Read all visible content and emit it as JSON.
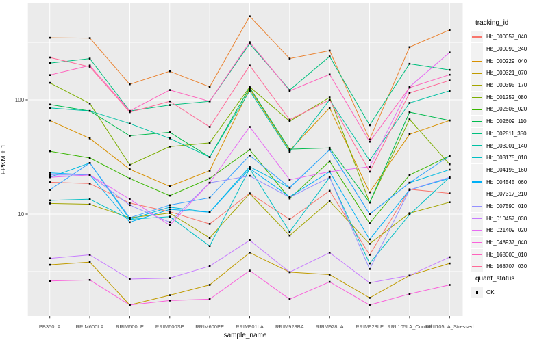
{
  "chart_data": {
    "type": "line",
    "title": "",
    "xlabel": "sample_name",
    "ylabel": "FPKM + 1",
    "y_scale": "log10",
    "y_tick_labels": [
      "100",
      "10"
    ],
    "y_ticks": [
      100,
      10
    ],
    "y_minor_ticks": [
      316.2,
      31.62,
      3.162
    ],
    "ylim": [
      1.28,
      700
    ],
    "grid": "on",
    "legend_position": "right",
    "point_marker": "small-black-square",
    "categories": [
      "PB350LA",
      "RRIM600LA",
      "RRIM600LE",
      "RRIM600SE",
      "RRIM600PE",
      "RRIM901LA",
      "RRIM928BA",
      "RRIM928LA",
      "RRIM928LE",
      "RRII105LA_Control",
      "RRII105LA_Stressed"
    ],
    "series": [
      {
        "name": "Hb_000057_040",
        "color": "#F8766D",
        "values": [
          19,
          18.5,
          12.5,
          10.5,
          8.2,
          15.2,
          9.0,
          16.0,
          4.4,
          16.5,
          15.2
        ]
      },
      {
        "name": "Hb_000099_240",
        "color": "#EA8331",
        "values": [
          350,
          348,
          137,
          178,
          130,
          540,
          230,
          270,
          45,
          290,
          410
        ]
      },
      {
        "name": "Hb_000229_040",
        "color": "#D89000",
        "values": [
          66,
          46,
          24.7,
          17.5,
          24,
          125,
          36,
          85,
          15.5,
          50,
          66
        ]
      },
      {
        "name": "Hb_000321_070",
        "color": "#C09B00",
        "values": [
          3.6,
          3.8,
          1.6,
          1.95,
          2.4,
          4.6,
          3.1,
          2.95,
          1.85,
          2.9,
          3.7
        ]
      },
      {
        "name": "Hb_000395_170",
        "color": "#A3A500",
        "values": [
          12.4,
          12.2,
          9.3,
          10.2,
          6.2,
          15.1,
          6.5,
          13.0,
          5.5,
          10.2,
          12.7
        ]
      },
      {
        "name": "Hb_001252_080",
        "color": "#7CAE00",
        "values": [
          141,
          93,
          27,
          39,
          42,
          130,
          65,
          105,
          12.6,
          67.5,
          27.3
        ]
      },
      {
        "name": "Hb_002506_020",
        "color": "#39B600",
        "values": [
          35.5,
          31,
          20.5,
          14.5,
          20.5,
          36.6,
          13.7,
          29,
          8.3,
          22,
          32.3
        ]
      },
      {
        "name": "Hb_002609_110",
        "color": "#00BB4E",
        "values": [
          91,
          80,
          48.5,
          52,
          31.6,
          128,
          37,
          38,
          12.6,
          78,
          66
        ]
      },
      {
        "name": "Hb_002811_350",
        "color": "#00BF7D",
        "values": [
          210,
          230,
          80,
          90,
          97,
          310,
          122,
          240,
          60,
          207,
          183
        ]
      },
      {
        "name": "Hb_003001_140",
        "color": "#00C1A3",
        "values": [
          85,
          80,
          62,
          46,
          31.6,
          120,
          35,
          100,
          29.5,
          94,
          120
        ]
      },
      {
        "name": "Hb_003175_010",
        "color": "#00BFC4",
        "values": [
          13.2,
          13.5,
          9.0,
          9.5,
          5.25,
          25,
          7.0,
          21,
          3.7,
          9.9,
          21
        ]
      },
      {
        "name": "Hb_004195_160",
        "color": "#00BAE0",
        "values": [
          21,
          28,
          9.0,
          11.5,
          10.4,
          26,
          17,
          36.6,
          10,
          18.8,
          24.5
        ]
      },
      {
        "name": "Hb_004545_060",
        "color": "#00B0F6",
        "values": [
          23,
          22,
          8.5,
          11,
          10.4,
          25,
          14.2,
          23.5,
          6.0,
          16.3,
          20.6
        ]
      },
      {
        "name": "Hb_007317_210",
        "color": "#35A2FF",
        "values": [
          16.3,
          28,
          9.3,
          12,
          13.9,
          32.6,
          17.1,
          36.6,
          10,
          18.8,
          32.3
        ]
      },
      {
        "name": "Hb_007590_010",
        "color": "#9590FF",
        "values": [
          22,
          22,
          12,
          8.5,
          18.8,
          21.6,
          14,
          21,
          3.3,
          16.3,
          21
        ]
      },
      {
        "name": "Hb_010457_030",
        "color": "#C77CFF",
        "values": [
          4.1,
          4.4,
          2.7,
          2.75,
          3.5,
          5.9,
          3.1,
          4.6,
          2.5,
          2.9,
          4.2
        ]
      },
      {
        "name": "Hb_021409_020",
        "color": "#E76BF3",
        "values": [
          21,
          22,
          13.5,
          8.0,
          18.8,
          58,
          20,
          23.5,
          26,
          130,
          260
        ]
      },
      {
        "name": "Hb_048937_040",
        "color": "#FA62DB",
        "values": [
          2.6,
          2.65,
          1.6,
          1.75,
          1.8,
          3.2,
          1.8,
          2.55,
          1.6,
          2.0,
          2.4
        ]
      },
      {
        "name": "Hb_168000_010",
        "color": "#FF62BC",
        "values": [
          165,
          200,
          80,
          122,
          97,
          320,
          120,
          167,
          43,
          128,
          166
        ]
      },
      {
        "name": "Hb_168707_030",
        "color": "#FF6A98",
        "values": [
          235,
          195,
          78,
          97,
          58,
          200,
          67,
          100,
          23.5,
          115,
          148
        ]
      }
    ]
  },
  "legend": {
    "tracking_title": "tracking_id",
    "quant_title": "quant_status",
    "quant_items": [
      {
        "label": "OK",
        "marker": "black-square"
      }
    ]
  },
  "style": {
    "panel_bg": "#EBEBEB",
    "grid_color": "#FFFFFF",
    "legend_key_bg": "#F2F2F2",
    "tick_text_color": "#4D4D4D",
    "tick_mark_color": "#333333",
    "point_color": "#000000"
  }
}
